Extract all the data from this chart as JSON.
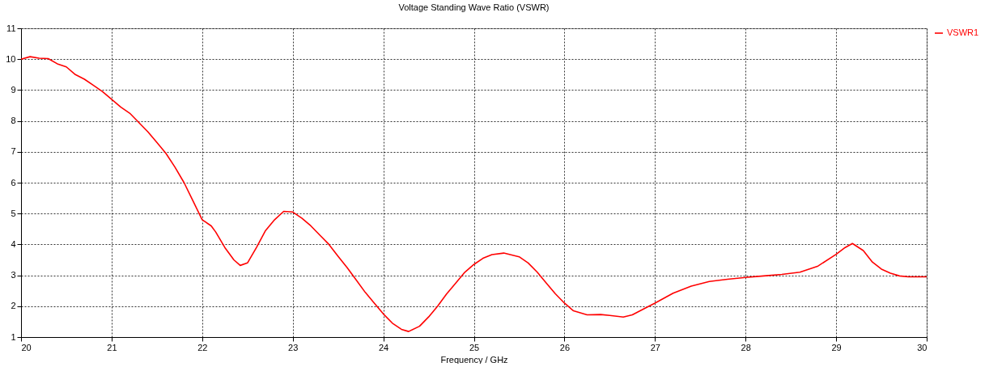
{
  "chart_data": {
    "type": "line",
    "title": "Voltage Standing Wave Ratio (VSWR)",
    "xlabel": "Frequency / GHz",
    "x": [
      20.0,
      20.1,
      20.2,
      20.3,
      20.4,
      20.5,
      20.6,
      20.7,
      20.8,
      20.9,
      21.0,
      21.1,
      21.2,
      21.3,
      21.4,
      21.5,
      21.6,
      21.7,
      21.8,
      21.9,
      22.0,
      22.1,
      22.15,
      22.25,
      22.35,
      22.42,
      22.5,
      22.6,
      22.7,
      22.8,
      22.9,
      23.0,
      23.1,
      23.2,
      23.3,
      23.4,
      23.5,
      23.6,
      23.7,
      23.8,
      23.9,
      24.0,
      24.1,
      24.2,
      24.28,
      24.4,
      24.5,
      24.6,
      24.7,
      24.8,
      24.9,
      25.0,
      25.1,
      25.2,
      25.33,
      25.5,
      25.6,
      25.7,
      25.8,
      25.9,
      26.0,
      26.1,
      26.25,
      26.4,
      26.5,
      26.65,
      26.75,
      26.9,
      27.0,
      27.2,
      27.4,
      27.6,
      27.8,
      28.0,
      28.2,
      28.4,
      28.6,
      28.8,
      29.0,
      29.1,
      29.18,
      29.3,
      29.4,
      29.5,
      29.6,
      29.7,
      29.8,
      30.0
    ],
    "series": [
      {
        "name": "VSWR1",
        "color": "#ff0000",
        "values": [
          10.0,
          10.08,
          10.03,
          10.02,
          9.85,
          9.75,
          9.5,
          9.35,
          9.15,
          8.95,
          8.7,
          8.45,
          8.25,
          7.95,
          7.65,
          7.3,
          6.95,
          6.5,
          6.0,
          5.4,
          4.8,
          4.6,
          4.4,
          3.9,
          3.5,
          3.32,
          3.4,
          3.9,
          4.45,
          4.8,
          5.07,
          5.05,
          4.85,
          4.6,
          4.3,
          4.0,
          3.62,
          3.25,
          2.85,
          2.45,
          2.1,
          1.75,
          1.45,
          1.25,
          1.18,
          1.35,
          1.65,
          2.0,
          2.4,
          2.75,
          3.1,
          3.35,
          3.55,
          3.67,
          3.72,
          3.6,
          3.4,
          3.1,
          2.75,
          2.4,
          2.1,
          1.85,
          1.72,
          1.73,
          1.7,
          1.65,
          1.72,
          1.95,
          2.1,
          2.42,
          2.65,
          2.8,
          2.87,
          2.93,
          2.98,
          3.03,
          3.1,
          3.3,
          3.68,
          3.9,
          4.03,
          3.8,
          3.43,
          3.2,
          3.07,
          2.98,
          2.95,
          2.95
        ]
      }
    ],
    "xlim": [
      20,
      30
    ],
    "xticks": [
      20,
      21,
      22,
      23,
      24,
      25,
      26,
      27,
      28,
      29,
      30
    ],
    "ylim": [
      1,
      11
    ],
    "yticks": [
      1,
      2,
      3,
      4,
      5,
      6,
      7,
      8,
      9,
      10,
      11
    ],
    "grid": true,
    "legend": "top right",
    "marker": "none",
    "line_style": "solid"
  }
}
